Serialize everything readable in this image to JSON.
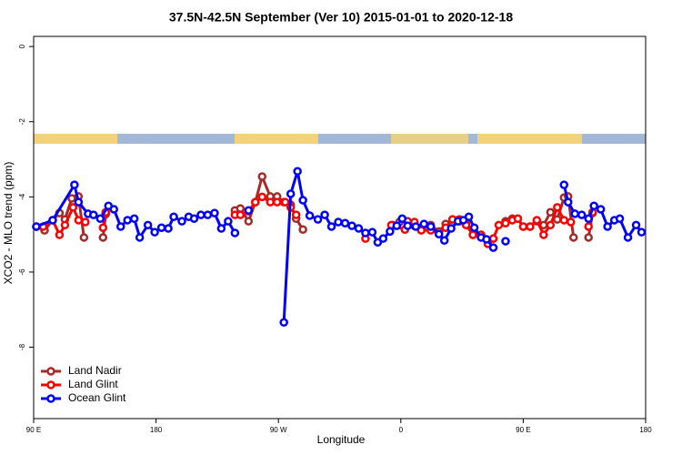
{
  "chart_data": {
    "type": "line",
    "title": "37.5N-42.5N September (Ver 10)   2015-01-01 to 2020-12-18",
    "x_label": "Longitude",
    "y_label": "XCO2 - MLO trend (ppm)",
    "xlim": [
      90,
      540
    ],
    "ylim": [
      -9.9,
      0.27
    ],
    "xticks": [
      {
        "value": 90,
        "label": "90 E"
      },
      180,
      {
        "value": 270,
        "label": "90 W"
      },
      {
        "value": 360,
        "label": "0"
      },
      {
        "value": 450,
        "label": "90 E"
      },
      {
        "value": 540,
        "label": "180"
      }
    ],
    "yticks": [
      -8,
      -6,
      -4,
      -2,
      0
    ],
    "legend": "bottom-left",
    "series": [
      {
        "name": "Land Nadir",
        "color": "#a52a2a",
        "x": [
          92,
          98,
          104,
          109,
          113,
          118,
          123,
          127,
          null,
          141,
          143,
          null,
          238,
          242,
          248,
          253,
          258,
          264,
          269,
          274,
          279,
          283,
          288,
          null,
          354,
          359,
          365,
          370,
          377,
          382,
          388,
          393,
          398,
          403,
          408,
          413,
          419,
          null,
          428,
          null,
          437,
          442,
          446,
          450,
          455,
          460,
          465,
          470,
          475,
          480,
          483,
          487,
          null,
          498,
          501
        ],
        "values": [
          -4.79,
          -4.89,
          -4.62,
          -4.43,
          -4.6,
          -4.04,
          -3.99,
          -5.08,
          null,
          -5.08,
          -4.46,
          null,
          -4.36,
          -4.31,
          -4.65,
          -4.14,
          -3.46,
          -3.99,
          -3.99,
          -4.14,
          -4.21,
          -4.58,
          -4.87,
          null,
          -4.75,
          -4.67,
          -4.65,
          -4.77,
          -4.75,
          -4.75,
          -4.92,
          -4.72,
          -4.6,
          -4.65,
          -4.67,
          -5.01,
          -5.01,
          null,
          -5.11,
          null,
          -4.65,
          -4.58,
          -4.58,
          -4.79,
          -4.79,
          -4.65,
          -4.75,
          -4.41,
          -4.6,
          -4.02,
          -3.99,
          -5.08,
          null,
          -5.08,
          -4.43
        ]
      },
      {
        "name": "Land Glint",
        "color": "#ff0000",
        "x": [
          92,
          97,
          104,
          109,
          113,
          119,
          123,
          128,
          null,
          141,
          143,
          null,
          238,
          242,
          248,
          253,
          258,
          264,
          269,
          275,
          279,
          283,
          null,
          334,
          null,
          353,
          363,
          370,
          375,
          382,
          388,
          393,
          398,
          403,
          408,
          413,
          419,
          424,
          428,
          432,
          437,
          442,
          446,
          450,
          455,
          460,
          465,
          470,
          475,
          480,
          485,
          null,
          498,
          501
        ],
        "values": [
          -4.79,
          -4.79,
          -4.62,
          -5.01,
          -4.75,
          -4.28,
          -4.62,
          -4.67,
          null,
          -4.82,
          -4.41,
          null,
          -4.48,
          -4.48,
          -4.38,
          -4.14,
          -4.0,
          -4.14,
          -4.14,
          -4.14,
          -4.28,
          -4.48,
          null,
          -5.11,
          null,
          -4.75,
          -4.87,
          -4.67,
          -4.89,
          -4.89,
          -4.99,
          -4.82,
          -4.6,
          -4.6,
          -4.75,
          -5.01,
          -5.01,
          -5.25,
          -5.11,
          -4.75,
          -4.7,
          -4.62,
          -4.58,
          -4.79,
          -4.79,
          -4.62,
          -5.01,
          -4.75,
          -4.28,
          -4.62,
          -4.67,
          null,
          -4.79,
          -4.41
        ]
      },
      {
        "name": "Ocean Glint",
        "color": "#0000ff",
        "x": [
          92,
          104,
          120,
          123,
          130,
          134,
          139,
          145,
          149,
          154,
          159,
          164,
          168,
          174,
          179,
          184,
          189,
          193,
          199,
          204,
          208,
          213,
          218,
          223,
          228,
          233,
          238,
          null,
          248,
          null,
          274,
          279,
          284,
          288,
          293,
          299,
          304,
          309,
          314,
          319,
          324,
          329,
          334,
          339,
          343,
          347,
          352,
          357,
          361,
          365,
          371,
          377,
          382,
          388,
          392,
          397,
          402,
          406,
          410,
          414,
          419,
          423,
          428,
          null,
          437,
          null,
          480,
          483,
          488,
          493,
          498,
          502,
          507,
          512,
          517,
          521,
          527,
          533,
          537
        ],
        "values": [
          -4.79,
          -4.62,
          -3.68,
          -4.14,
          -4.45,
          -4.48,
          -4.58,
          -4.24,
          -4.33,
          -4.79,
          -4.62,
          -4.58,
          -5.08,
          -4.75,
          -4.94,
          -4.82,
          -4.84,
          -4.53,
          -4.65,
          -4.53,
          -4.58,
          -4.48,
          -4.48,
          -4.43,
          -4.84,
          -4.65,
          -4.96,
          null,
          -4.36,
          null,
          -7.34,
          -3.92,
          -3.32,
          -4.09,
          -4.5,
          -4.6,
          -4.48,
          -4.79,
          -4.67,
          -4.7,
          -4.77,
          -4.84,
          -4.96,
          -4.94,
          -5.21,
          -5.11,
          -4.92,
          -4.77,
          -4.58,
          -4.77,
          -4.79,
          -4.72,
          -4.79,
          -4.99,
          -5.16,
          -4.84,
          -4.65,
          -4.62,
          -4.53,
          -4.82,
          -5.08,
          -5.13,
          -5.35,
          null,
          -5.18,
          null,
          -3.68,
          -4.14,
          -4.45,
          -4.48,
          -4.58,
          -4.24,
          -4.33,
          -4.79,
          -4.62,
          -4.58,
          -5.08,
          -4.75,
          -4.94
        ]
      }
    ]
  }
}
